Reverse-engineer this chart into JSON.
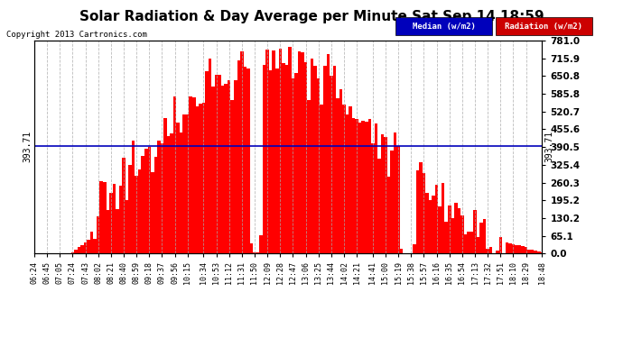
{
  "title": "Solar Radiation & Day Average per Minute Sat Sep 14 18:59",
  "copyright": "Copyright 2013 Cartronics.com",
  "legend_median_label": "Median (w/m2)",
  "legend_radiation_label": "Radiation (w/m2)",
  "median_value": 393.71,
  "yticks_right": [
    0.0,
    65.1,
    130.2,
    195.2,
    260.3,
    325.4,
    390.5,
    455.6,
    520.7,
    585.8,
    650.8,
    715.9,
    781.0
  ],
  "ymax": 781.0,
  "ymin": 0.0,
  "background_color": "#ffffff",
  "plot_bg_color": "#ffffff",
  "bar_color": "#ff0000",
  "median_line_color": "#0000bb",
  "grid_color": "#aaaaaa",
  "title_fontsize": 11,
  "axis_fontsize": 7.5,
  "tick_labels": [
    "06:24",
    "06:45",
    "07:05",
    "07:24",
    "07:43",
    "08:02",
    "08:21",
    "08:40",
    "08:59",
    "09:18",
    "09:37",
    "09:56",
    "10:15",
    "10:34",
    "10:53",
    "11:12",
    "11:31",
    "11:50",
    "12:09",
    "12:28",
    "12:47",
    "13:06",
    "13:25",
    "13:44",
    "14:02",
    "14:21",
    "14:41",
    "15:00",
    "15:19",
    "15:38",
    "15:57",
    "16:16",
    "16:35",
    "16:54",
    "17:13",
    "17:32",
    "17:51",
    "18:10",
    "18:29",
    "18:48"
  ]
}
